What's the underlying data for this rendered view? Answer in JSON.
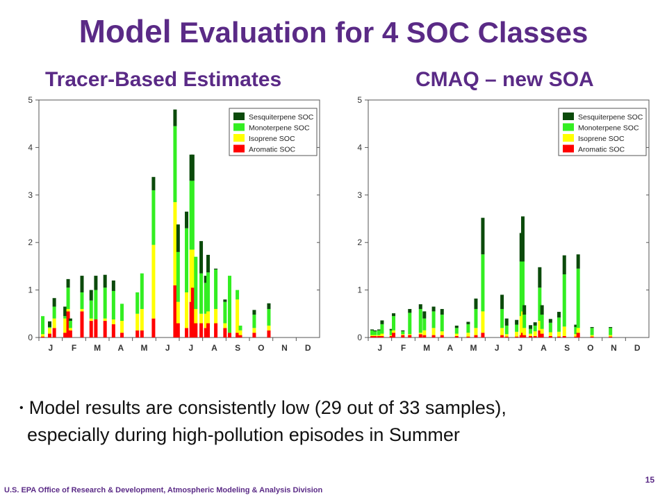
{
  "title": {
    "word1": "Model",
    "rest": " Evaluation for 4 SOC Classes"
  },
  "bullet": {
    "line1": "Model results are consistently low (29 out of 33 samples),",
    "line2": "especially during high-pollution episodes in Summer"
  },
  "footer": "U.S. EPA Office of Research & Development, Atmospheric Modeling & Analysis Division",
  "page_number": "15",
  "chart_data": [
    {
      "type": "bar",
      "stacked": true,
      "title": "Tracer-Based Estimates",
      "xlabel": "",
      "ylabel": "",
      "ylim": [
        0,
        5
      ],
      "yticks": [
        "0",
        "1",
        "2",
        "3",
        "4",
        "5"
      ],
      "months": [
        "J",
        "F",
        "M",
        "A",
        "M",
        "J",
        "J",
        "A",
        "S",
        "O",
        "N",
        "D"
      ],
      "legend_position": "top-right",
      "series": [
        {
          "name": "Aromatic SOC",
          "color": "#ff0000"
        },
        {
          "name": "Isoprene SOC",
          "color": "#ffff00"
        },
        {
          "name": "Monoterpene SOC",
          "color": "#33ee22"
        },
        {
          "name": "Sesquiterpene SOC",
          "color": "#0b4a0b"
        }
      ],
      "samples": [
        {
          "day": 5,
          "values": [
            0.02,
            0.05,
            0.38,
            0.0
          ]
        },
        {
          "day": 14,
          "values": [
            0.08,
            0.12,
            0.02,
            0.12
          ]
        },
        {
          "day": 20,
          "values": [
            0.2,
            0.2,
            0.25,
            0.18
          ]
        },
        {
          "day": 34,
          "values": [
            0.1,
            0.3,
            0.05,
            0.2
          ]
        },
        {
          "day": 38,
          "values": [
            0.55,
            0.05,
            0.45,
            0.18
          ]
        },
        {
          "day": 41,
          "values": [
            0.15,
            0.05,
            0.15,
            0.05
          ]
        },
        {
          "day": 56,
          "values": [
            0.55,
            0.05,
            0.35,
            0.35
          ]
        },
        {
          "day": 68,
          "values": [
            0.35,
            0.05,
            0.38,
            0.22
          ]
        },
        {
          "day": 74,
          "values": [
            0.38,
            0.0,
            0.62,
            0.3
          ]
        },
        {
          "day": 86,
          "values": [
            0.35,
            0.05,
            0.65,
            0.27
          ]
        },
        {
          "day": 97,
          "values": [
            0.28,
            0.1,
            0.6,
            0.22
          ]
        },
        {
          "day": 108,
          "values": [
            0.1,
            0.25,
            0.36,
            0.0
          ]
        },
        {
          "day": 128,
          "values": [
            0.15,
            0.35,
            0.45,
            0.0
          ]
        },
        {
          "day": 134,
          "values": [
            0.15,
            0.45,
            0.75,
            0.0
          ]
        },
        {
          "day": 149,
          "values": [
            0.4,
            1.55,
            1.15,
            0.28
          ]
        },
        {
          "day": 177,
          "values": [
            1.1,
            1.75,
            1.6,
            0.35
          ]
        },
        {
          "day": 181,
          "values": [
            0.3,
            0.45,
            1.05,
            0.58
          ]
        },
        {
          "day": 192,
          "values": [
            0.2,
            0.75,
            1.35,
            0.35
          ]
        },
        {
          "day": 198,
          "values": [
            0.75,
            1.1,
            1.45,
            0.55
          ]
        },
        {
          "day": 200,
          "values": [
            1.05,
            0.8,
            1.45,
            0.55
          ]
        },
        {
          "day": 204,
          "values": [
            0.3,
            0.3,
            1.1,
            0.0
          ]
        },
        {
          "day": 211,
          "values": [
            0.3,
            0.2,
            0.85,
            0.68
          ]
        },
        {
          "day": 217,
          "values": [
            0.2,
            0.3,
            0.65,
            0.15
          ]
        },
        {
          "day": 220,
          "values": [
            0.3,
            0.25,
            0.82,
            0.37
          ]
        },
        {
          "day": 230,
          "values": [
            0.3,
            0.3,
            0.83,
            0.02
          ]
        },
        {
          "day": 242,
          "values": [
            0.2,
            0.1,
            0.45,
            0.05
          ]
        },
        {
          "day": 248,
          "values": [
            0.1,
            0.0,
            1.2,
            0.0
          ]
        },
        {
          "day": 258,
          "values": [
            0.1,
            0.7,
            0.2,
            0.0
          ]
        },
        {
          "day": 262,
          "values": [
            0.05,
            0.1,
            0.1,
            0.0
          ]
        },
        {
          "day": 280,
          "values": [
            0.1,
            0.1,
            0.28,
            0.1
          ]
        },
        {
          "day": 299,
          "values": [
            0.15,
            0.1,
            0.35,
            0.12
          ]
        }
      ]
    },
    {
      "type": "bar",
      "stacked": true,
      "title": "CMAQ – new SOA",
      "xlabel": "",
      "ylabel": "",
      "ylim": [
        0,
        5
      ],
      "yticks": [
        "0",
        "1",
        "2",
        "3",
        "4",
        "5"
      ],
      "months": [
        "J",
        "F",
        "M",
        "A",
        "M",
        "J",
        "J",
        "A",
        "S",
        "O",
        "N",
        "D"
      ],
      "legend_position": "top-right",
      "series": [
        {
          "name": "Aromatic SOC",
          "color": "#ff0000"
        },
        {
          "name": "Isoprene SOC",
          "color": "#ffff00"
        },
        {
          "name": "Monoterpene SOC",
          "color": "#33ee22"
        },
        {
          "name": "Sesquiterpene SOC",
          "color": "#0b4a0b"
        }
      ],
      "samples": [
        {
          "day": 5,
          "values": [
            0.03,
            0.02,
            0.1,
            0.02
          ]
        },
        {
          "day": 9,
          "values": [
            0.03,
            0.02,
            0.08,
            0.02
          ]
        },
        {
          "day": 14,
          "values": [
            0.03,
            0.02,
            0.1,
            0.02
          ]
        },
        {
          "day": 18,
          "values": [
            0.03,
            0.05,
            0.2,
            0.08
          ]
        },
        {
          "day": 30,
          "values": [
            0.03,
            0.02,
            0.1,
            0.03
          ]
        },
        {
          "day": 33,
          "values": [
            0.1,
            0.05,
            0.3,
            0.06
          ]
        },
        {
          "day": 45,
          "values": [
            0.05,
            0.02,
            0.06,
            0.02
          ]
        },
        {
          "day": 54,
          "values": [
            0.05,
            0.02,
            0.45,
            0.08
          ]
        },
        {
          "day": 68,
          "values": [
            0.07,
            0.03,
            0.5,
            0.1
          ]
        },
        {
          "day": 73,
          "values": [
            0.05,
            0.1,
            0.25,
            0.15
          ]
        },
        {
          "day": 85,
          "values": [
            0.05,
            0.15,
            0.35,
            0.1
          ]
        },
        {
          "day": 96,
          "values": [
            0.05,
            0.08,
            0.35,
            0.12
          ]
        },
        {
          "day": 115,
          "values": [
            0.03,
            0.05,
            0.12,
            0.05
          ]
        },
        {
          "day": 130,
          "values": [
            0.02,
            0.08,
            0.18,
            0.05
          ]
        },
        {
          "day": 140,
          "values": [
            0.05,
            0.15,
            0.4,
            0.22
          ]
        },
        {
          "day": 149,
          "values": [
            0.1,
            0.45,
            1.2,
            0.77
          ]
        },
        {
          "day": 174,
          "values": [
            0.05,
            0.15,
            0.4,
            0.3
          ]
        },
        {
          "day": 180,
          "values": [
            0.02,
            0.05,
            0.18,
            0.15
          ]
        },
        {
          "day": 193,
          "values": [
            0.02,
            0.1,
            0.15,
            0.1
          ]
        },
        {
          "day": 199,
          "values": [
            0.05,
            0.4,
            1.15,
            0.6
          ]
        },
        {
          "day": 201,
          "values": [
            0.1,
            0.45,
            1.05,
            0.95
          ]
        },
        {
          "day": 203,
          "values": [
            0.05,
            0.15,
            0.28,
            0.2
          ]
        },
        {
          "day": 211,
          "values": [
            0.03,
            0.05,
            0.1,
            0.08
          ]
        },
        {
          "day": 217,
          "values": [
            0.03,
            0.1,
            0.12,
            0.07
          ]
        },
        {
          "day": 223,
          "values": [
            0.15,
            0.2,
            0.7,
            0.43
          ]
        },
        {
          "day": 226,
          "values": [
            0.08,
            0.1,
            0.3,
            0.2
          ]
        },
        {
          "day": 237,
          "values": [
            0.03,
            0.08,
            0.2,
            0.08
          ]
        },
        {
          "day": 248,
          "values": [
            0.02,
            0.1,
            0.3,
            0.12
          ]
        },
        {
          "day": 255,
          "values": [
            0.03,
            0.2,
            1.1,
            0.4
          ]
        },
        {
          "day": 270,
          "values": [
            0.02,
            0.05,
            0.15,
            0.05
          ]
        },
        {
          "day": 273,
          "values": [
            0.1,
            0.1,
            1.25,
            0.3
          ]
        },
        {
          "day": 291,
          "values": [
            0.02,
            0.03,
            0.15,
            0.02
          ]
        },
        {
          "day": 315,
          "values": [
            0.02,
            0.03,
            0.15,
            0.02
          ]
        }
      ]
    }
  ]
}
